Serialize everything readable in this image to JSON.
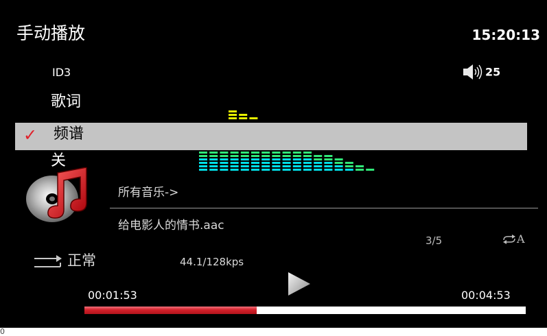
{
  "header": {
    "title": "手动播放",
    "clock": "15:20:13"
  },
  "volume": {
    "icon": "speaker-icon",
    "level": "25"
  },
  "menu": {
    "items": [
      {
        "label": "ID3",
        "selected": false
      },
      {
        "label": "歌词",
        "selected": false
      },
      {
        "label": "频谱",
        "selected": true,
        "check": "✓"
      },
      {
        "label": "关",
        "selected": false
      }
    ],
    "highlight_color": "#c4c4c4",
    "check_color": "#e0202a"
  },
  "spectrum": {
    "upper_levels": [
      3,
      2,
      1,
      0,
      0,
      0,
      0,
      0,
      0,
      0,
      0,
      0,
      0,
      0,
      0,
      0,
      0,
      0,
      0,
      0
    ],
    "lower_levels": [
      6,
      6,
      6,
      6,
      6,
      6,
      6,
      6,
      6,
      6,
      6,
      5,
      5,
      4,
      3,
      2,
      1,
      0,
      0,
      0
    ],
    "colors": {
      "top": "#e6f000",
      "mid": "#30e878",
      "low": "#00e0e8"
    }
  },
  "track": {
    "breadcrumb": "所有音乐->",
    "filename": "给电影人的情书.aac",
    "index": "3/5",
    "repeat_mode": "A",
    "play_mode": "正常",
    "bitrate": "44.1/128kps",
    "elapsed": "00:01:53",
    "total": "00:04:53",
    "progress": 0.39,
    "progress_color": "#d3202a"
  },
  "footer_mark": "0"
}
